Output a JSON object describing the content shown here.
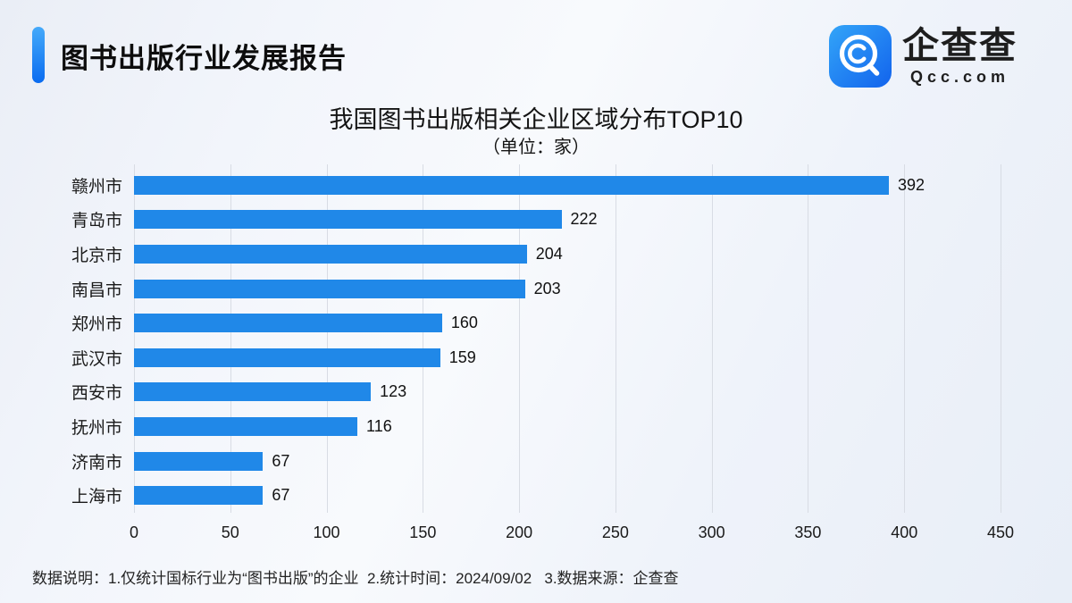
{
  "header": {
    "title": "图书出版行业发展报告",
    "logo": {
      "brand": "企查查",
      "domain": "Qcc.com"
    }
  },
  "chart_data": {
    "type": "bar",
    "orientation": "horizontal",
    "title": "我国图书出版相关企业区域分布TOP10",
    "subtitle": "（单位：家）",
    "categories": [
      "赣州市",
      "青岛市",
      "北京市",
      "南昌市",
      "郑州市",
      "武汉市",
      "西安市",
      "抚州市",
      "济南市",
      "上海市"
    ],
    "values": [
      392,
      222,
      204,
      203,
      160,
      159,
      123,
      116,
      67,
      67
    ],
    "xlabel": "",
    "ylabel": "",
    "xlim": [
      0,
      450
    ],
    "ticks": [
      0,
      50,
      100,
      150,
      200,
      250,
      300,
      350,
      400,
      450
    ],
    "grid": "vertical-only",
    "legend": "none",
    "bar_color": "#2088e8",
    "gridline_color": "#d8dce4"
  },
  "footer": {
    "note": "数据说明：1.仅统计国标行业为“图书出版”的企业  2.统计时间：2024/09/02   3.数据来源：企查查"
  }
}
